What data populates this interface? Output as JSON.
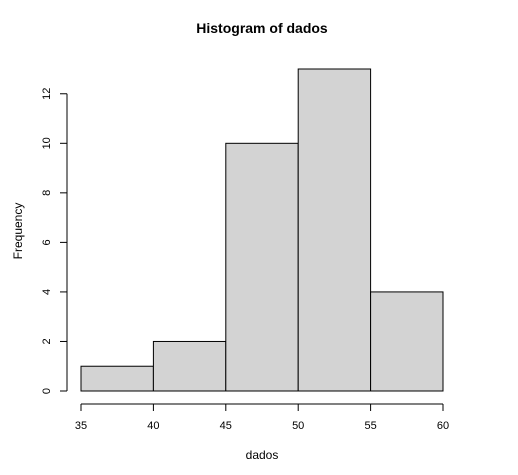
{
  "chart_data": {
    "type": "bar",
    "title": "Histogram of dados",
    "xlabel": "dados",
    "ylabel": "Frequency",
    "bins": [
      {
        "from": 35,
        "to": 40,
        "count": 1
      },
      {
        "from": 40,
        "to": 45,
        "count": 2
      },
      {
        "from": 45,
        "to": 50,
        "count": 10
      },
      {
        "from": 50,
        "to": 55,
        "count": 13
      },
      {
        "from": 55,
        "to": 60,
        "count": 4
      }
    ],
    "xlim": [
      35,
      60
    ],
    "ylim": [
      0,
      13
    ],
    "x_ticks": [
      35,
      40,
      45,
      50,
      55,
      60
    ],
    "y_ticks": [
      0,
      2,
      4,
      6,
      8,
      10,
      12
    ],
    "grid": false,
    "colors": {
      "bar_fill": "#d3d3d3",
      "bar_stroke": "#000000"
    }
  }
}
